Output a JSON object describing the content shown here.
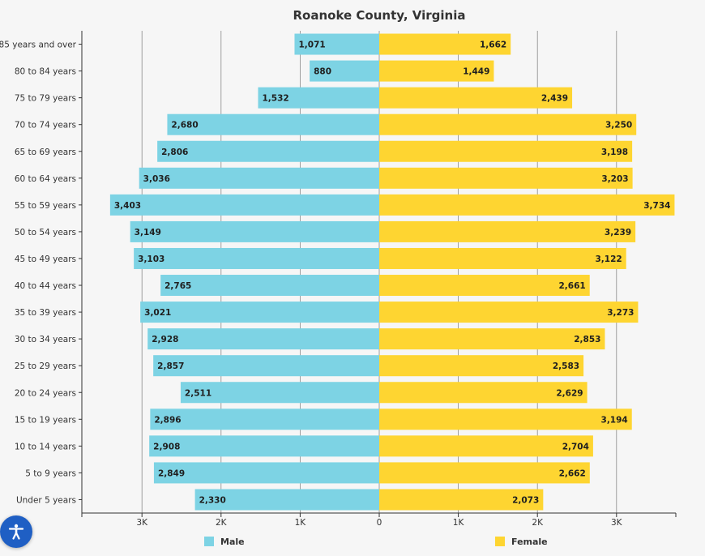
{
  "chart_data": {
    "type": "bar",
    "orientation": "horizontal",
    "layout": "population-pyramid",
    "title": "Roanoke County, Virginia",
    "categories": [
      "85 years and over",
      "80 to 84 years",
      "75 to 79 years",
      "70 to 74 years",
      "65 to 69 years",
      "60 to 64 years",
      "55 to 59 years",
      "50 to 54 years",
      "45 to 49 years",
      "40 to 44 years",
      "35 to 39 years",
      "30 to 34 years",
      "25 to 29 years",
      "20 to 24 years",
      "15 to 19 years",
      "10 to 14 years",
      "5 to 9 years",
      "Under 5 years"
    ],
    "series": [
      {
        "name": "Male",
        "color": "#7dd3e4",
        "direction": "left",
        "values": [
          1071,
          880,
          1532,
          2680,
          2806,
          3036,
          3403,
          3149,
          3103,
          2765,
          3021,
          2928,
          2857,
          2511,
          2896,
          2908,
          2849,
          2330
        ],
        "labels": [
          "1,071",
          "880",
          "1,532",
          "2,680",
          "2,806",
          "3,036",
          "3,403",
          "3,149",
          "3,103",
          "2,765",
          "3,021",
          "2,928",
          "2,857",
          "2,511",
          "2,896",
          "2,908",
          "2,849",
          "2,330"
        ]
      },
      {
        "name": "Female",
        "color": "#fed531",
        "direction": "right",
        "values": [
          1662,
          1449,
          2439,
          3250,
          3198,
          3203,
          3734,
          3239,
          3122,
          2661,
          3273,
          2853,
          2583,
          2629,
          3194,
          2704,
          2662,
          2073
        ],
        "labels": [
          "1,662",
          "1,449",
          "2,439",
          "3,250",
          "3,198",
          "3,203",
          "3,734",
          "3,239",
          "3,122",
          "2,661",
          "3,273",
          "2,853",
          "2,583",
          "2,629",
          "3,194",
          "2,704",
          "2,662",
          "2,073"
        ]
      }
    ],
    "x_ticks": [
      -3000,
      -2000,
      -1000,
      0,
      1000,
      2000,
      3000
    ],
    "x_tick_labels": [
      "3K",
      "2K",
      "1K",
      "0",
      "1K",
      "2K",
      "3K"
    ],
    "xlim": [
      -3750,
      3750
    ],
    "grid": true,
    "legend": "bottom"
  },
  "accessibility_button": {
    "icon": "accessibility-icon"
  }
}
